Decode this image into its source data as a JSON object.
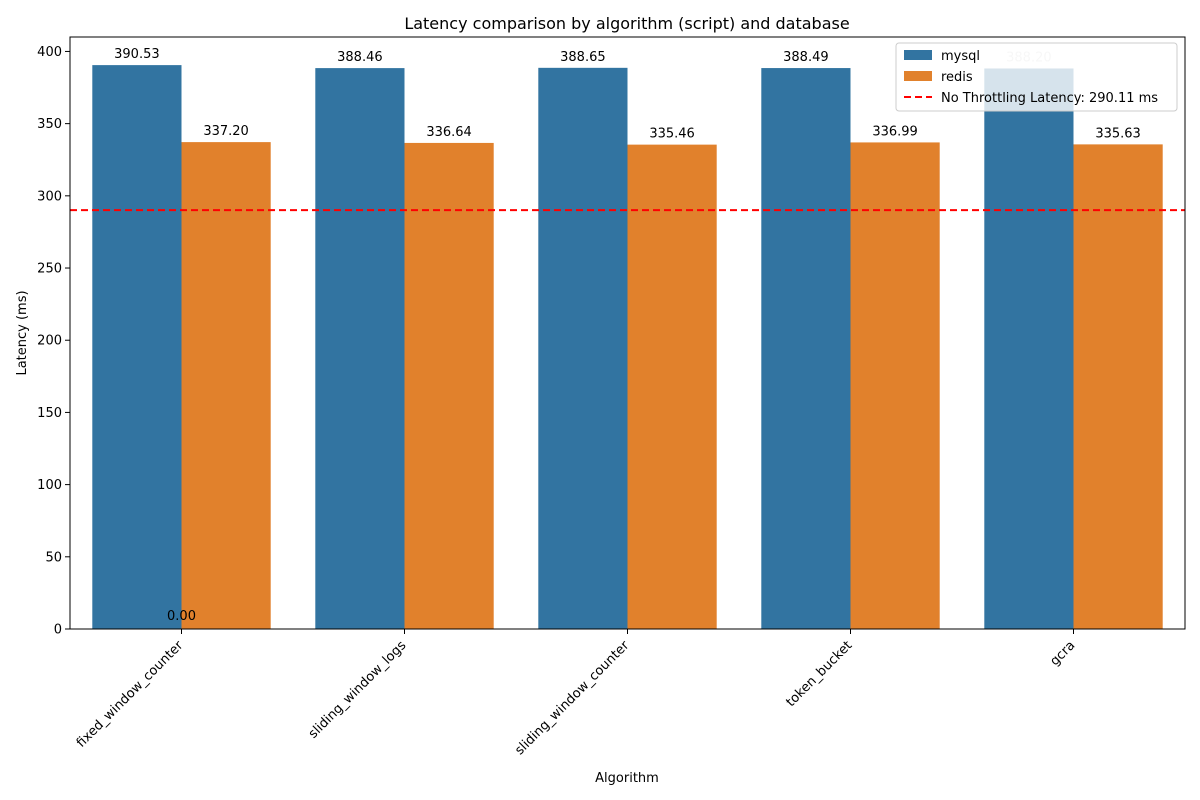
{
  "chart_data": {
    "type": "bar",
    "title": "Latency comparison by algorithm (script) and database",
    "xlabel": "Algorithm",
    "ylabel": "Latency (ms)",
    "categories": [
      "fixed_window_counter",
      "sliding_window_logs",
      "sliding_window_counter",
      "token_bucket",
      "gcra"
    ],
    "series": [
      {
        "name": "mysql",
        "color": "#3274a1",
        "values": [
          390.53,
          388.46,
          388.65,
          388.49,
          388.2
        ],
        "value_labels": [
          "390.53",
          "388.46",
          "388.65",
          "388.49",
          "388.20"
        ]
      },
      {
        "name": "redis",
        "color": "#e1812c",
        "values": [
          337.2,
          336.64,
          335.46,
          336.99,
          335.63
        ],
        "value_labels": [
          "337.20",
          "336.64",
          "335.46",
          "336.99",
          "335.63"
        ]
      }
    ],
    "extra_annotation": {
      "text": "0.00",
      "value": 0
    },
    "yticks": [
      0,
      50,
      100,
      150,
      200,
      250,
      300,
      350,
      400
    ],
    "ylim": [
      0,
      410
    ],
    "reference_line": {
      "value": 290.11,
      "label": "No Throttling Latency: 290.11 ms",
      "color": "#ff0000",
      "style": "dashed"
    },
    "legend": {
      "position": "top-right"
    },
    "grid": false
  }
}
